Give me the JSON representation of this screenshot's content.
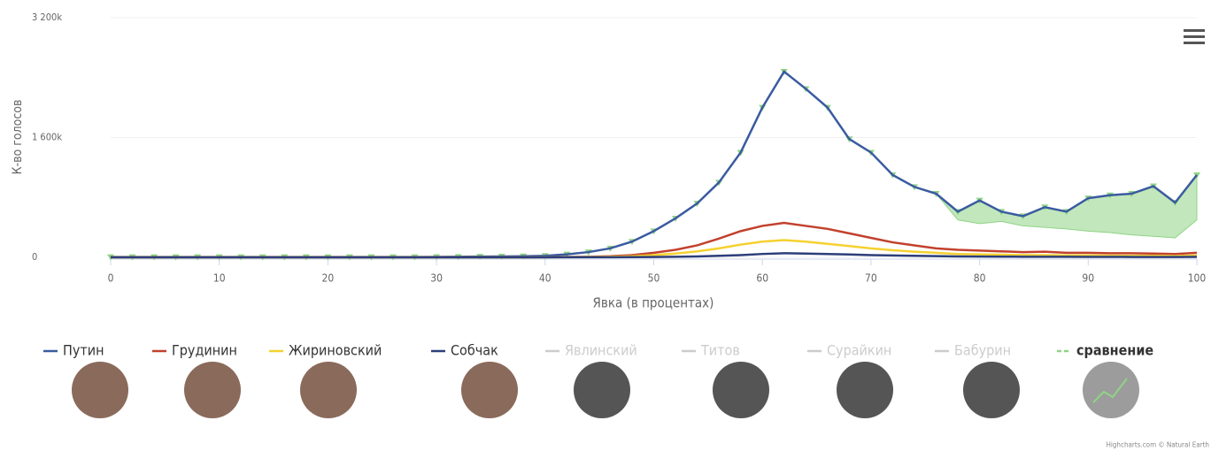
{
  "chart_data": {
    "type": "line",
    "y_axis_label": "К-во голосов",
    "x_axis_label": "Явка (в процентах)",
    "x": [
      0,
      2,
      4,
      6,
      8,
      10,
      12,
      14,
      16,
      18,
      20,
      22,
      24,
      26,
      28,
      30,
      32,
      34,
      36,
      38,
      40,
      42,
      44,
      46,
      48,
      50,
      52,
      54,
      56,
      58,
      60,
      62,
      64,
      66,
      68,
      70,
      72,
      74,
      76,
      78,
      80,
      82,
      84,
      86,
      88,
      90,
      92,
      94,
      96,
      98,
      100
    ],
    "xlim": [
      0,
      100
    ],
    "xticks": [
      0,
      10,
      20,
      30,
      40,
      50,
      60,
      70,
      80,
      90,
      100
    ],
    "ylim": [
      0,
      3200
    ],
    "yticks": [
      {
        "value": 0,
        "label": "0"
      },
      {
        "value": 1600,
        "label": "1 600k"
      },
      {
        "value": 3200,
        "label": "3 200k"
      }
    ],
    "series": [
      {
        "name": "Путин",
        "color": "#3a5ba0",
        "values": [
          5,
          5,
          5,
          5,
          5,
          5,
          5,
          5,
          5,
          5,
          5,
          5,
          5,
          5,
          5,
          6,
          8,
          10,
          12,
          15,
          20,
          40,
          70,
          120,
          210,
          350,
          520,
          720,
          1000,
          1400,
          2000,
          2480,
          2250,
          2000,
          1580,
          1400,
          1100,
          940,
          850,
          610,
          760,
          610,
          550,
          670,
          610,
          790,
          830,
          850,
          950,
          730,
          1100
        ]
      },
      {
        "name": "Грудинин",
        "color": "#c2412d",
        "values": [
          1,
          1,
          1,
          1,
          1,
          1,
          1,
          1,
          1,
          1,
          1,
          1,
          1,
          1,
          1,
          1,
          1,
          1,
          1,
          1,
          3,
          5,
          8,
          15,
          30,
          60,
          100,
          160,
          250,
          350,
          420,
          460,
          420,
          380,
          320,
          260,
          200,
          160,
          120,
          100,
          90,
          80,
          70,
          75,
          60,
          60,
          55,
          55,
          50,
          45,
          60
        ]
      },
      {
        "name": "Жириновский",
        "color": "#f5d130",
        "values": [
          0,
          0,
          0,
          0,
          0,
          0,
          0,
          0,
          0,
          0,
          0,
          0,
          0,
          0,
          0,
          0,
          0,
          0,
          0,
          0,
          1,
          2,
          4,
          8,
          15,
          30,
          50,
          80,
          120,
          170,
          210,
          230,
          210,
          180,
          150,
          120,
          95,
          75,
          60,
          45,
          40,
          35,
          30,
          30,
          25,
          25,
          22,
          20,
          20,
          18,
          25
        ]
      },
      {
        "name": "Собчак",
        "color": "#2c3e7a",
        "values": [
          0,
          0,
          0,
          0,
          0,
          0,
          0,
          0,
          0,
          0,
          0,
          0,
          0,
          0,
          0,
          0,
          0,
          0,
          0,
          0,
          0,
          1,
          1,
          2,
          3,
          5,
          8,
          12,
          20,
          30,
          45,
          55,
          50,
          45,
          38,
          30,
          25,
          20,
          16,
          12,
          10,
          9,
          8,
          8,
          7,
          6,
          6,
          5,
          5,
          5,
          6
        ]
      },
      {
        "name": "Явлинский",
        "color": "#cccccc",
        "visible": false
      },
      {
        "name": "Титов",
        "color": "#cccccc",
        "visible": false
      },
      {
        "name": "Сурайкин",
        "color": "#cccccc",
        "visible": false
      },
      {
        "name": "Бабурин",
        "color": "#cccccc",
        "visible": false
      },
      {
        "name": "сравнение",
        "color": "#8fd485",
        "band": true,
        "values": [
          5,
          5,
          5,
          5,
          5,
          5,
          5,
          5,
          5,
          5,
          5,
          5,
          5,
          5,
          5,
          6,
          8,
          10,
          12,
          15,
          20,
          40,
          70,
          120,
          210,
          350,
          520,
          720,
          1000,
          1400,
          2000,
          2480,
          2250,
          2000,
          1580,
          1400,
          1100,
          940,
          850,
          610,
          760,
          610,
          550,
          670,
          610,
          790,
          830,
          850,
          950,
          730,
          1100
        ],
        "low": [
          5,
          5,
          5,
          5,
          5,
          5,
          5,
          5,
          5,
          5,
          5,
          5,
          5,
          5,
          5,
          6,
          8,
          10,
          12,
          15,
          20,
          40,
          70,
          120,
          210,
          350,
          520,
          720,
          1000,
          1400,
          2000,
          2480,
          2250,
          2000,
          1580,
          1400,
          1100,
          940,
          850,
          500,
          450,
          480,
          420,
          400,
          380,
          350,
          330,
          300,
          280,
          260,
          500
        ]
      }
    ],
    "credits": "Highcharts.com © Natural Earth"
  }
}
